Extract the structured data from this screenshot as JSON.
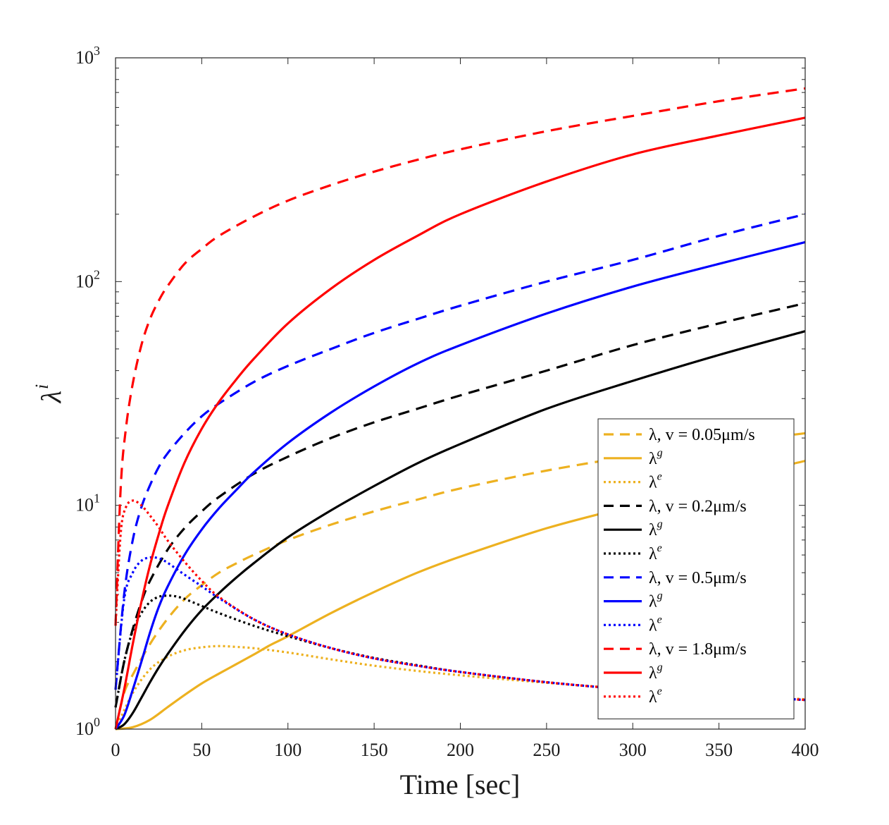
{
  "chart_data": {
    "type": "line",
    "yscale": "log",
    "xlabel": "Time [sec]",
    "ylabel": "λ",
    "ylabel_sup": "i",
    "xlim": [
      0,
      400
    ],
    "ylim": [
      1,
      1000
    ],
    "xticks": [
      0,
      50,
      100,
      150,
      200,
      250,
      300,
      350,
      400
    ],
    "xtick_labels": [
      "0",
      "50",
      "100",
      "150",
      "200",
      "250",
      "300",
      "350",
      "400"
    ],
    "yticks": [
      1,
      10,
      100,
      1000
    ],
    "ytick_labels": [
      {
        "base": "10",
        "exp": "0"
      },
      {
        "base": "10",
        "exp": "1"
      },
      {
        "base": "10",
        "exp": "2"
      },
      {
        "base": "10",
        "exp": "3"
      }
    ],
    "colors": {
      "v005": "#EDB120",
      "v02": "#000000",
      "v05": "#0000FF",
      "v18": "#FF0000"
    },
    "series": [
      {
        "id": "lam_005",
        "name": "λ, v = 0.05μm/s",
        "legend_main": "λ, v = 0.05μm/s",
        "color": "#EDB120",
        "style": "dashed",
        "points": [
          [
            0,
            1.0
          ],
          [
            5,
            1.45
          ],
          [
            10,
            1.75
          ],
          [
            20,
            2.4
          ],
          [
            30,
            3.1
          ],
          [
            40,
            3.8
          ],
          [
            50,
            4.4
          ],
          [
            60,
            5.0
          ],
          [
            70,
            5.5
          ],
          [
            80,
            6.0
          ],
          [
            100,
            7.0
          ],
          [
            125,
            8.2
          ],
          [
            150,
            9.4
          ],
          [
            175,
            10.6
          ],
          [
            200,
            11.9
          ],
          [
            250,
            14.3
          ],
          [
            300,
            16.6
          ],
          [
            350,
            18.8
          ],
          [
            400,
            21.0
          ]
        ]
      },
      {
        "id": "lamg_005",
        "name": "λ^g",
        "legend_main": "λ",
        "legend_sup": "g",
        "color": "#EDB120",
        "style": "solid",
        "points": [
          [
            0,
            1.0
          ],
          [
            10,
            1.02
          ],
          [
            20,
            1.1
          ],
          [
            30,
            1.25
          ],
          [
            40,
            1.42
          ],
          [
            50,
            1.6
          ],
          [
            60,
            1.77
          ],
          [
            70,
            1.95
          ],
          [
            80,
            2.15
          ],
          [
            90,
            2.38
          ],
          [
            100,
            2.6
          ],
          [
            125,
            3.3
          ],
          [
            150,
            4.1
          ],
          [
            175,
            5.0
          ],
          [
            200,
            5.9
          ],
          [
            250,
            7.9
          ],
          [
            300,
            10.0
          ],
          [
            350,
            12.8
          ],
          [
            400,
            15.8
          ]
        ]
      },
      {
        "id": "lame_005",
        "name": "λ^e",
        "legend_main": "λ",
        "legend_sup": "e",
        "color": "#EDB120",
        "style": "dotted",
        "points": [
          [
            0,
            1.0
          ],
          [
            10,
            1.45
          ],
          [
            20,
            1.85
          ],
          [
            30,
            2.1
          ],
          [
            40,
            2.25
          ],
          [
            50,
            2.32
          ],
          [
            60,
            2.35
          ],
          [
            70,
            2.33
          ],
          [
            80,
            2.3
          ],
          [
            100,
            2.2
          ],
          [
            125,
            2.05
          ],
          [
            150,
            1.92
          ],
          [
            175,
            1.82
          ],
          [
            200,
            1.74
          ],
          [
            250,
            1.61
          ],
          [
            300,
            1.51
          ],
          [
            350,
            1.43
          ],
          [
            400,
            1.36
          ]
        ]
      },
      {
        "id": "lam_02",
        "name": "λ, v = 0.2μm/s",
        "legend_main": "λ, v = 0.2μm/s",
        "color": "#000000",
        "style": "dashed",
        "points": [
          [
            0,
            1.25
          ],
          [
            5,
            2.0
          ],
          [
            10,
            2.8
          ],
          [
            15,
            3.7
          ],
          [
            20,
            4.6
          ],
          [
            30,
            6.3
          ],
          [
            40,
            7.9
          ],
          [
            50,
            9.4
          ],
          [
            60,
            10.9
          ],
          [
            80,
            13.8
          ],
          [
            100,
            16.5
          ],
          [
            125,
            20.0
          ],
          [
            150,
            23.5
          ],
          [
            175,
            27.0
          ],
          [
            200,
            31.0
          ],
          [
            250,
            40.0
          ],
          [
            300,
            52.0
          ],
          [
            350,
            65.0
          ],
          [
            400,
            80.0
          ]
        ]
      },
      {
        "id": "lamg_02",
        "name": "λ^g",
        "legend_main": "λ",
        "legend_sup": "g",
        "color": "#000000",
        "style": "solid",
        "points": [
          [
            0,
            1.0
          ],
          [
            5,
            1.05
          ],
          [
            10,
            1.18
          ],
          [
            15,
            1.38
          ],
          [
            20,
            1.62
          ],
          [
            25,
            1.88
          ],
          [
            30,
            2.15
          ],
          [
            40,
            2.75
          ],
          [
            50,
            3.4
          ],
          [
            60,
            4.05
          ],
          [
            70,
            4.75
          ],
          [
            80,
            5.5
          ],
          [
            100,
            7.2
          ],
          [
            125,
            9.5
          ],
          [
            150,
            12.2
          ],
          [
            175,
            15.4
          ],
          [
            200,
            18.8
          ],
          [
            250,
            27.0
          ],
          [
            300,
            36.0
          ],
          [
            350,
            47.0
          ],
          [
            400,
            60.0
          ]
        ]
      },
      {
        "id": "lame_02",
        "name": "λ^e",
        "legend_main": "λ",
        "legend_sup": "e",
        "color": "#000000",
        "style": "dotted",
        "points": [
          [
            0,
            1.25
          ],
          [
            5,
            2.0
          ],
          [
            10,
            2.75
          ],
          [
            15,
            3.3
          ],
          [
            20,
            3.7
          ],
          [
            25,
            3.9
          ],
          [
            30,
            3.95
          ],
          [
            35,
            3.92
          ],
          [
            40,
            3.82
          ],
          [
            50,
            3.55
          ],
          [
            60,
            3.3
          ],
          [
            80,
            2.9
          ],
          [
            100,
            2.6
          ],
          [
            125,
            2.3
          ],
          [
            150,
            2.08
          ],
          [
            175,
            1.93
          ],
          [
            200,
            1.8
          ],
          [
            250,
            1.62
          ],
          [
            300,
            1.5
          ],
          [
            350,
            1.42
          ],
          [
            400,
            1.35
          ]
        ]
      },
      {
        "id": "lam_05",
        "name": "λ, v = 0.5μm/s",
        "legend_main": "λ, v = 0.5μm/s",
        "color": "#0000FF",
        "style": "dashed",
        "points": [
          [
            0,
            1.5
          ],
          [
            5,
            4.0
          ],
          [
            10,
            7.0
          ],
          [
            15,
            9.8
          ],
          [
            20,
            12.3
          ],
          [
            25,
            14.8
          ],
          [
            30,
            17.0
          ],
          [
            40,
            21.0
          ],
          [
            50,
            25.0
          ],
          [
            60,
            28.5
          ],
          [
            80,
            35.5
          ],
          [
            100,
            42.0
          ],
          [
            125,
            50.0
          ],
          [
            150,
            59.0
          ],
          [
            175,
            68.0
          ],
          [
            200,
            78.0
          ],
          [
            250,
            100.0
          ],
          [
            300,
            125.0
          ],
          [
            350,
            160.0
          ],
          [
            400,
            200.0
          ]
        ]
      },
      {
        "id": "lamg_05",
        "name": "λ^g",
        "legend_main": "λ",
        "legend_sup": "g",
        "color": "#0000FF",
        "style": "solid",
        "points": [
          [
            0,
            1.0
          ],
          [
            5,
            1.15
          ],
          [
            10,
            1.5
          ],
          [
            15,
            2.0
          ],
          [
            20,
            2.7
          ],
          [
            25,
            3.5
          ],
          [
            30,
            4.3
          ],
          [
            40,
            6.0
          ],
          [
            50,
            7.8
          ],
          [
            60,
            9.7
          ],
          [
            70,
            11.7
          ],
          [
            80,
            14.0
          ],
          [
            100,
            19.0
          ],
          [
            125,
            26.0
          ],
          [
            150,
            34.0
          ],
          [
            175,
            43.0
          ],
          [
            200,
            52.0
          ],
          [
            250,
            72.0
          ],
          [
            300,
            95.0
          ],
          [
            350,
            120.0
          ],
          [
            400,
            150.0
          ]
        ]
      },
      {
        "id": "lame_05",
        "name": "λ^e",
        "legend_main": "λ",
        "legend_sup": "e",
        "color": "#0000FF",
        "style": "dotted",
        "points": [
          [
            0,
            1.5
          ],
          [
            5,
            3.8
          ],
          [
            10,
            5.0
          ],
          [
            15,
            5.65
          ],
          [
            20,
            5.85
          ],
          [
            25,
            5.8
          ],
          [
            30,
            5.55
          ],
          [
            40,
            4.9
          ],
          [
            50,
            4.35
          ],
          [
            60,
            3.85
          ],
          [
            80,
            3.1
          ],
          [
            100,
            2.65
          ],
          [
            125,
            2.3
          ],
          [
            150,
            2.07
          ],
          [
            175,
            1.92
          ],
          [
            200,
            1.8
          ],
          [
            250,
            1.62
          ],
          [
            300,
            1.5
          ],
          [
            350,
            1.42
          ],
          [
            400,
            1.35
          ]
        ]
      },
      {
        "id": "lam_18",
        "name": "λ, v = 1.8μm/s",
        "legend_main": "λ, v = 1.8μm/s",
        "color": "#FF0000",
        "style": "dashed",
        "points": [
          [
            0,
            2.9
          ],
          [
            3,
            12.0
          ],
          [
            6,
            22.0
          ],
          [
            10,
            35.0
          ],
          [
            15,
            52.0
          ],
          [
            20,
            68.0
          ],
          [
            25,
            82.0
          ],
          [
            30,
            95.0
          ],
          [
            40,
            120.0
          ],
          [
            50,
            140.0
          ],
          [
            60,
            160.0
          ],
          [
            80,
            195.0
          ],
          [
            100,
            230.0
          ],
          [
            125,
            270.0
          ],
          [
            150,
            310.0
          ],
          [
            175,
            350.0
          ],
          [
            200,
            390.0
          ],
          [
            250,
            470.0
          ],
          [
            300,
            550.0
          ],
          [
            350,
            640.0
          ],
          [
            400,
            730.0
          ]
        ]
      },
      {
        "id": "lamg_18",
        "name": "λ^g",
        "legend_main": "λ",
        "legend_sup": "g",
        "color": "#FF0000",
        "style": "solid",
        "points": [
          [
            0,
            1.0
          ],
          [
            5,
            1.5
          ],
          [
            10,
            2.4
          ],
          [
            15,
            3.7
          ],
          [
            20,
            5.4
          ],
          [
            25,
            7.4
          ],
          [
            30,
            9.8
          ],
          [
            40,
            15.5
          ],
          [
            50,
            22.0
          ],
          [
            60,
            29.0
          ],
          [
            70,
            36.5
          ],
          [
            80,
            45.0
          ],
          [
            100,
            65.0
          ],
          [
            125,
            93.0
          ],
          [
            150,
            125.0
          ],
          [
            175,
            160.0
          ],
          [
            200,
            200.0
          ],
          [
            250,
            280.0
          ],
          [
            300,
            370.0
          ],
          [
            350,
            450.0
          ],
          [
            400,
            540.0
          ]
        ]
      },
      {
        "id": "lame_18",
        "name": "λ^e",
        "legend_main": "λ",
        "legend_sup": "e",
        "color": "#FF0000",
        "style": "dotted",
        "points": [
          [
            0,
            2.9
          ],
          [
            3,
            7.5
          ],
          [
            6,
            9.8
          ],
          [
            10,
            10.5
          ],
          [
            15,
            10.0
          ],
          [
            20,
            9.0
          ],
          [
            25,
            8.0
          ],
          [
            30,
            7.0
          ],
          [
            40,
            5.6
          ],
          [
            50,
            4.6
          ],
          [
            60,
            3.9
          ],
          [
            80,
            3.1
          ],
          [
            100,
            2.65
          ],
          [
            125,
            2.3
          ],
          [
            150,
            2.07
          ],
          [
            175,
            1.92
          ],
          [
            200,
            1.8
          ],
          [
            250,
            1.62
          ],
          [
            300,
            1.5
          ],
          [
            350,
            1.42
          ],
          [
            400,
            1.35
          ]
        ]
      }
    ],
    "legend_position": "bottom-right"
  }
}
